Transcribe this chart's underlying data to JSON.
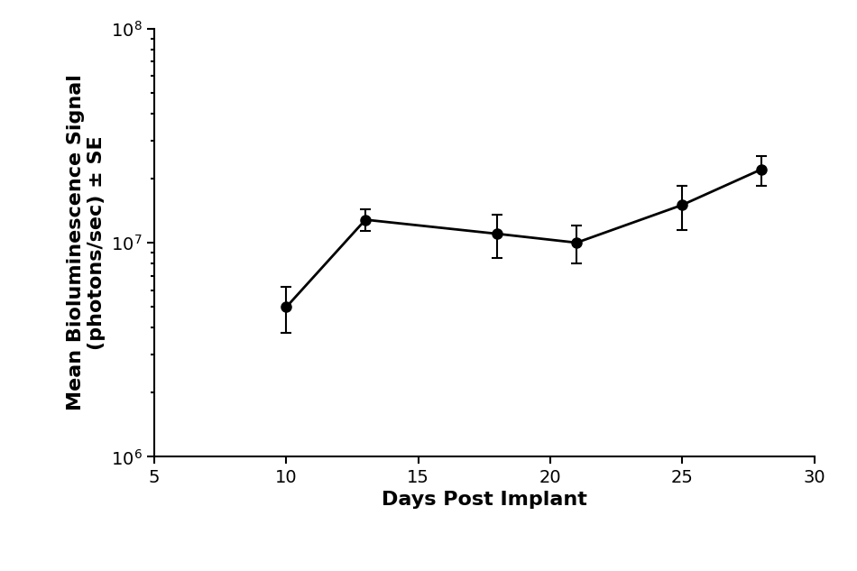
{
  "xlabel": "Days Post Implant",
  "ylabel": "Mean Bioluminescence Signal\n(photons/sec) ± SE",
  "x": [
    10,
    13,
    18,
    21,
    25,
    28
  ],
  "y": [
    5000000.0,
    12800000.0,
    11000000.0,
    10000000.0,
    15000000.0,
    22000000.0
  ],
  "yerr_low": [
    1200000.0,
    1500000.0,
    2500000.0,
    2000000.0,
    3500000.0,
    3500000.0
  ],
  "yerr_high": [
    1200000.0,
    1500000.0,
    2500000.0,
    2000000.0,
    3500000.0,
    3500000.0
  ],
  "xlim": [
    5,
    30
  ],
  "xticks": [
    5,
    10,
    15,
    20,
    25,
    30
  ],
  "ylim": [
    1000000.0,
    100000000.0
  ],
  "line_color": "#000000",
  "marker_color": "#000000",
  "marker_size": 8,
  "line_width": 2,
  "capsize": 4,
  "background_color": "#ffffff",
  "label_fontsize": 16,
  "tick_fontsize": 14
}
